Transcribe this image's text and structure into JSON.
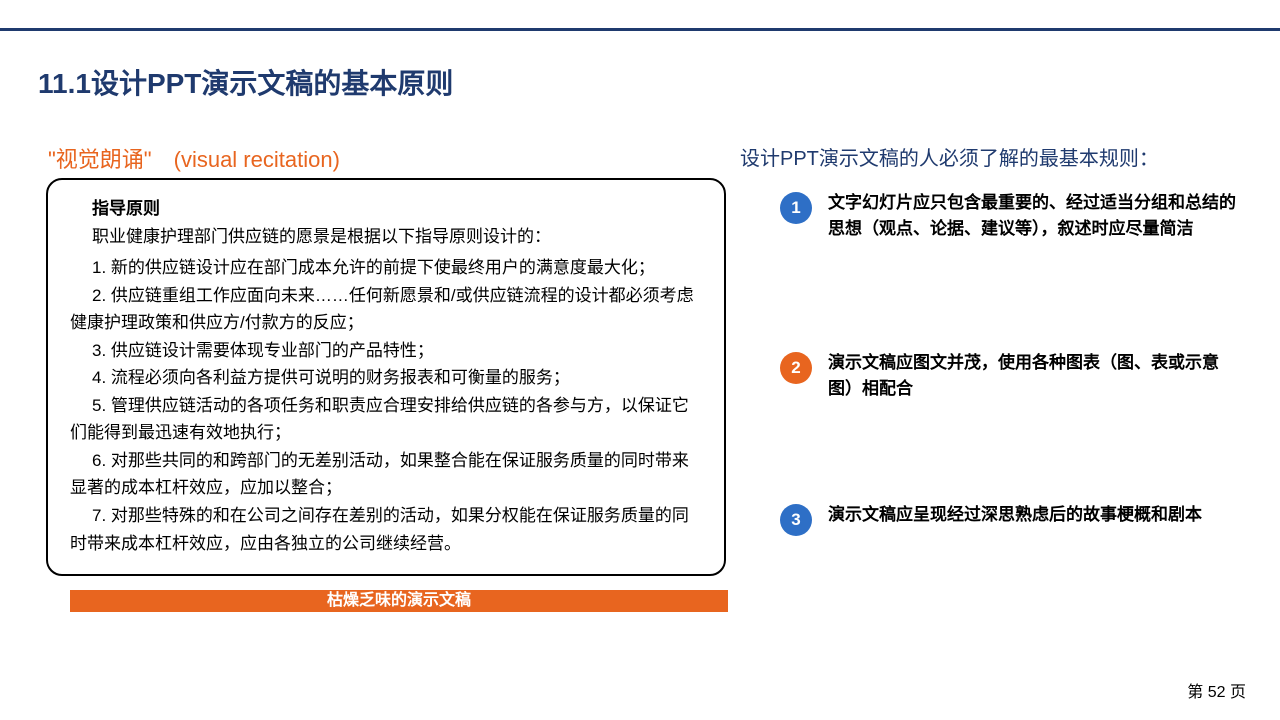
{
  "colors": {
    "navy": "#1f3a6e",
    "orange": "#e8651f",
    "blue": "#2e6fc6",
    "black": "#000000",
    "white": "#ffffff"
  },
  "title": "11.1设计PPT演示文稿的基本原则",
  "subtitle_left": "\"视觉朗诵\"　(visual recitation)",
  "example": {
    "heading": "指导原则",
    "intro": "职业健康护理部门供应链的愿景是根据以下指导原则设计的：",
    "items": [
      "1. 新的供应链设计应在部门成本允许的前提下使最终用户的满意度最大化；",
      "2. 供应链重组工作应面向未来……任何新愿景和/或供应链流程的设计都必须考虑健康护理政策和供应方/付款方的反应；",
      "3. 供应链设计需要体现专业部门的产品特性；",
      "4. 流程必须向各利益方提供可说明的财务报表和可衡量的服务；",
      "5. 管理供应链活动的各项任务和职责应合理安排给供应链的各参与方，以保证它们能得到最迅速有效地执行；",
      "6. 对那些共同的和跨部门的无差别活动，如果整合能在保证服务质量的同时带来显著的成本杠杆效应，应加以整合；",
      "7. 对那些特殊的和在公司之间存在差别的活动，如果分权能在保证服务质量的同时带来成本杠杆效应，应由各独立的公司继续经营。"
    ]
  },
  "orange_bar": "枯燥乏味的演示文稿",
  "right_title": "设计PPT演示文稿的人必须了解的最基本规则：",
  "rules": [
    {
      "num": "1",
      "color": "blue",
      "text": "文字幻灯片应只包含最重要的、经过适当分组和总结的思想（观点、论据、建议等），叙述时应尽量简洁"
    },
    {
      "num": "2",
      "color": "orange",
      "text": "演示文稿应图文并茂，使用各种图表（图、表或示意图）相配合"
    },
    {
      "num": "3",
      "color": "blue",
      "text": "演示文稿应呈现经过深思熟虑后的故事梗概和剧本"
    }
  ],
  "page_num": "第 52 页"
}
